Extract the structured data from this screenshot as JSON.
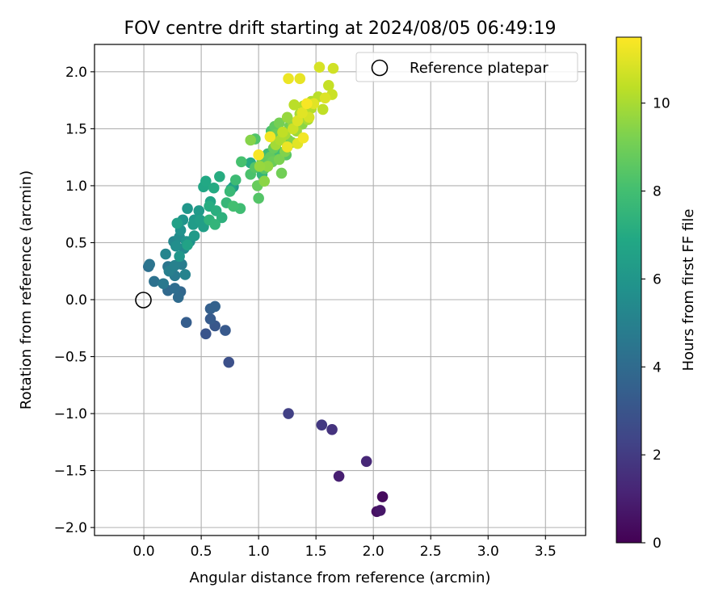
{
  "chart_data": {
    "type": "scatter",
    "title": "FOV centre drift starting at 2024/08/05 06:49:19",
    "xlabel": "Angular distance from reference (arcmin)",
    "ylabel": "Rotation from reference (arcmin)",
    "xlim": [
      -0.43,
      3.85
    ],
    "ylim": [
      -2.07,
      2.24
    ],
    "xticks": [
      0.0,
      0.5,
      1.0,
      1.5,
      2.0,
      2.5,
      3.0,
      3.5
    ],
    "yticks": [
      -2.0,
      -1.5,
      -1.0,
      -0.5,
      0.0,
      0.5,
      1.0,
      1.5,
      2.0
    ],
    "xtick_labels": [
      "0.0",
      "0.5",
      "1.0",
      "1.5",
      "2.0",
      "2.5",
      "3.0",
      "3.5"
    ],
    "ytick_labels": [
      "−2.0",
      "−1.5",
      "−1.0",
      "−0.5",
      "0.0",
      "0.5",
      "1.0",
      "1.5",
      "2.0"
    ],
    "grid": true,
    "legend": {
      "location": "top-right",
      "entries": [
        "Reference platepar"
      ]
    },
    "reference_point": {
      "x": 0.0,
      "y": 0.0,
      "marker": "hollow-circle"
    },
    "colorbar": {
      "label": "Hours from first FF file",
      "range": [
        0,
        11.5
      ],
      "ticks": [
        0,
        2,
        4,
        6,
        8,
        10
      ],
      "tick_labels": [
        "0",
        "2",
        "4",
        "6",
        "8",
        "10"
      ],
      "colormap": "viridis"
    },
    "series": [
      {
        "points": [
          {
            "x": 2.08,
            "y": -1.73,
            "t": 0.3
          },
          {
            "x": 2.03,
            "y": -1.86,
            "t": 0.5
          },
          {
            "x": 2.06,
            "y": -1.85,
            "t": 0.7
          },
          {
            "x": 1.7,
            "y": -1.55,
            "t": 1.0
          },
          {
            "x": 1.94,
            "y": -1.42,
            "t": 1.3
          },
          {
            "x": 1.64,
            "y": -1.14,
            "t": 1.7
          },
          {
            "x": 1.55,
            "y": -1.1,
            "t": 1.9
          },
          {
            "x": 1.26,
            "y": -1.0,
            "t": 2.2
          },
          {
            "x": 0.74,
            "y": -0.55,
            "t": 2.8
          },
          {
            "x": 0.54,
            "y": -0.3,
            "t": 3.0
          },
          {
            "x": 0.62,
            "y": -0.23,
            "t": 3.1
          },
          {
            "x": 0.71,
            "y": -0.27,
            "t": 3.2
          },
          {
            "x": 0.58,
            "y": -0.17,
            "t": 3.3
          },
          {
            "x": 0.37,
            "y": -0.2,
            "t": 3.4
          },
          {
            "x": 0.58,
            "y": -0.08,
            "t": 3.5
          },
          {
            "x": 0.62,
            "y": -0.06,
            "t": 3.6
          },
          {
            "x": 0.32,
            "y": 0.07,
            "t": 3.8
          },
          {
            "x": 0.21,
            "y": 0.08,
            "t": 3.9
          },
          {
            "x": 0.3,
            "y": 0.02,
            "t": 4.0
          },
          {
            "x": 0.27,
            "y": 0.1,
            "t": 4.1
          },
          {
            "x": 0.04,
            "y": 0.29,
            "t": 4.2
          },
          {
            "x": 0.09,
            "y": 0.16,
            "t": 4.3
          },
          {
            "x": 0.05,
            "y": 0.31,
            "t": 4.4
          },
          {
            "x": 0.21,
            "y": 0.29,
            "t": 4.5
          },
          {
            "x": 0.17,
            "y": 0.14,
            "t": 4.6
          },
          {
            "x": 0.27,
            "y": 0.21,
            "t": 4.7
          },
          {
            "x": 0.33,
            "y": 0.31,
            "t": 4.8
          },
          {
            "x": 0.22,
            "y": 0.25,
            "t": 4.9
          },
          {
            "x": 0.27,
            "y": 0.3,
            "t": 5.0
          },
          {
            "x": 0.36,
            "y": 0.22,
            "t": 5.1
          },
          {
            "x": 0.19,
            "y": 0.4,
            "t": 5.2
          },
          {
            "x": 0.26,
            "y": 0.51,
            "t": 5.3
          },
          {
            "x": 0.35,
            "y": 0.45,
            "t": 5.4
          },
          {
            "x": 0.31,
            "y": 0.55,
            "t": 5.5
          },
          {
            "x": 0.28,
            "y": 0.47,
            "t": 5.6
          },
          {
            "x": 0.4,
            "y": 0.51,
            "t": 5.7
          },
          {
            "x": 0.32,
            "y": 0.61,
            "t": 5.8
          },
          {
            "x": 0.34,
            "y": 0.7,
            "t": 5.9
          },
          {
            "x": 0.38,
            "y": 0.8,
            "t": 6.0
          },
          {
            "x": 0.44,
            "y": 0.7,
            "t": 6.1
          },
          {
            "x": 0.48,
            "y": 0.78,
            "t": 6.2
          },
          {
            "x": 0.43,
            "y": 0.66,
            "t": 6.3
          },
          {
            "x": 0.52,
            "y": 0.64,
            "t": 6.4
          },
          {
            "x": 0.29,
            "y": 0.67,
            "t": 6.5
          },
          {
            "x": 0.38,
            "y": 0.48,
            "t": 6.6
          },
          {
            "x": 0.58,
            "y": 0.86,
            "t": 6.7
          },
          {
            "x": 0.52,
            "y": 0.99,
            "t": 6.8
          },
          {
            "x": 0.54,
            "y": 1.04,
            "t": 6.9
          },
          {
            "x": 0.61,
            "y": 0.98,
            "t": 7.0
          },
          {
            "x": 0.66,
            "y": 1.08,
            "t": 7.1
          },
          {
            "x": 0.63,
            "y": 0.78,
            "t": 7.2
          },
          {
            "x": 0.68,
            "y": 0.72,
            "t": 7.3
          },
          {
            "x": 0.57,
            "y": 0.7,
            "t": 7.4
          },
          {
            "x": 0.62,
            "y": 0.66,
            "t": 7.5
          },
          {
            "x": 0.72,
            "y": 0.85,
            "t": 7.6
          },
          {
            "x": 0.75,
            "y": 0.95,
            "t": 7.7
          },
          {
            "x": 0.8,
            "y": 1.05,
            "t": 7.8
          },
          {
            "x": 0.84,
            "y": 0.8,
            "t": 7.9
          },
          {
            "x": 0.78,
            "y": 0.82,
            "t": 8.0
          },
          {
            "x": 0.85,
            "y": 1.21,
            "t": 8.1
          },
          {
            "x": 0.93,
            "y": 1.1,
            "t": 8.2
          },
          {
            "x": 0.97,
            "y": 1.41,
            "t": 8.3
          },
          {
            "x": 1.0,
            "y": 0.89,
            "t": 8.4
          },
          {
            "x": 1.05,
            "y": 1.15,
            "t": 8.5
          },
          {
            "x": 1.03,
            "y": 1.22,
            "t": 8.6
          },
          {
            "x": 1.1,
            "y": 1.25,
            "t": 8.7
          },
          {
            "x": 1.13,
            "y": 1.33,
            "t": 8.8
          },
          {
            "x": 1.15,
            "y": 1.45,
            "t": 8.9
          },
          {
            "x": 1.2,
            "y": 1.11,
            "t": 9.0
          },
          {
            "x": 1.18,
            "y": 1.55,
            "t": 9.1
          },
          {
            "x": 1.26,
            "y": 1.4,
            "t": 9.2
          },
          {
            "x": 1.23,
            "y": 1.3,
            "t": 9.3
          },
          {
            "x": 0.93,
            "y": 1.4,
            "t": 9.4
          },
          {
            "x": 1.05,
            "y": 1.04,
            "t": 9.5
          },
          {
            "x": 1.3,
            "y": 1.55,
            "t": 9.6
          },
          {
            "x": 1.25,
            "y": 1.6,
            "t": 9.7
          },
          {
            "x": 1.33,
            "y": 1.48,
            "t": 9.8
          },
          {
            "x": 1.36,
            "y": 1.63,
            "t": 9.9
          },
          {
            "x": 1.43,
            "y": 1.58,
            "t": 10.0
          },
          {
            "x": 1.46,
            "y": 1.74,
            "t": 10.1
          },
          {
            "x": 1.39,
            "y": 1.7,
            "t": 10.2
          },
          {
            "x": 1.31,
            "y": 1.71,
            "t": 10.3
          },
          {
            "x": 1.56,
            "y": 1.67,
            "t": 10.4
          },
          {
            "x": 1.61,
            "y": 1.88,
            "t": 10.5
          },
          {
            "x": 1.64,
            "y": 1.8,
            "t": 10.6
          },
          {
            "x": 1.65,
            "y": 2.03,
            "t": 10.7
          },
          {
            "x": 1.53,
            "y": 2.04,
            "t": 10.8
          },
          {
            "x": 1.58,
            "y": 1.77,
            "t": 10.9
          },
          {
            "x": 1.48,
            "y": 1.72,
            "t": 11.0
          },
          {
            "x": 1.36,
            "y": 1.94,
            "t": 11.1
          },
          {
            "x": 1.26,
            "y": 1.94,
            "t": 11.2
          },
          {
            "x": 1.1,
            "y": 1.43,
            "t": 11.3
          },
          {
            "x": 1.0,
            "y": 1.27,
            "t": 11.4
          },
          {
            "x": 1.39,
            "y": 1.42,
            "t": 11.3
          },
          {
            "x": 1.25,
            "y": 1.34,
            "t": 11.2
          },
          {
            "x": 1.34,
            "y": 1.37,
            "t": 11.0
          },
          {
            "x": 1.44,
            "y": 1.6,
            "t": 10.8
          },
          {
            "x": 1.12,
            "y": 1.21,
            "t": 8.9
          },
          {
            "x": 1.08,
            "y": 1.17,
            "t": 9.6
          },
          {
            "x": 1.15,
            "y": 1.36,
            "t": 9.9
          },
          {
            "x": 1.17,
            "y": 1.3,
            "t": 8.0
          },
          {
            "x": 1.19,
            "y": 1.4,
            "t": 10.1
          },
          {
            "x": 1.21,
            "y": 1.47,
            "t": 10.4
          },
          {
            "x": 1.08,
            "y": 1.28,
            "t": 7.8
          },
          {
            "x": 1.11,
            "y": 1.48,
            "t": 8.2
          },
          {
            "x": 1.14,
            "y": 1.52,
            "t": 8.6
          },
          {
            "x": 1.01,
            "y": 1.17,
            "t": 9.7
          },
          {
            "x": 1.03,
            "y": 1.1,
            "t": 7.5
          },
          {
            "x": 0.97,
            "y": 1.16,
            "t": 8.4
          },
          {
            "x": 0.93,
            "y": 1.2,
            "t": 7.0
          },
          {
            "x": 0.99,
            "y": 1.0,
            "t": 8.8
          },
          {
            "x": 0.76,
            "y": 0.97,
            "t": 6.7
          },
          {
            "x": 0.78,
            "y": 0.99,
            "t": 6.0
          },
          {
            "x": 0.57,
            "y": 0.82,
            "t": 7.1
          },
          {
            "x": 0.49,
            "y": 0.7,
            "t": 6.4
          },
          {
            "x": 0.44,
            "y": 0.56,
            "t": 6.2
          },
          {
            "x": 0.37,
            "y": 0.51,
            "t": 5.9
          },
          {
            "x": 0.31,
            "y": 0.38,
            "t": 6.0
          },
          {
            "x": 1.3,
            "y": 1.5,
            "t": 10.6
          },
          {
            "x": 1.34,
            "y": 1.57,
            "t": 10.9
          },
          {
            "x": 1.38,
            "y": 1.64,
            "t": 11.0
          },
          {
            "x": 1.42,
            "y": 1.72,
            "t": 11.4
          },
          {
            "x": 1.46,
            "y": 1.68,
            "t": 10.2
          },
          {
            "x": 1.52,
            "y": 1.78,
            "t": 10.3
          },
          {
            "x": 1.29,
            "y": 1.38,
            "t": 9.3
          },
          {
            "x": 1.27,
            "y": 1.52,
            "t": 9.0
          },
          {
            "x": 1.23,
            "y": 1.45,
            "t": 10.0
          },
          {
            "x": 1.38,
            "y": 1.54,
            "t": 9.5
          },
          {
            "x": 1.18,
            "y": 1.23,
            "t": 9.2
          },
          {
            "x": 1.24,
            "y": 1.27,
            "t": 8.5
          }
        ]
      }
    ]
  }
}
